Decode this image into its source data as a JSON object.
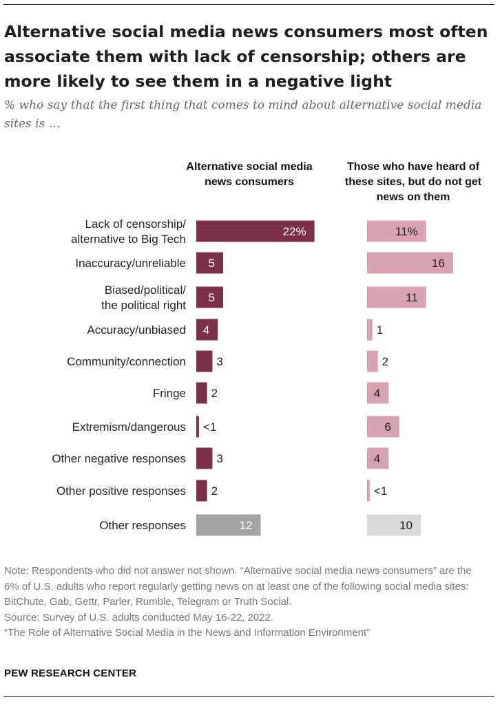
{
  "title": "Alternative social media news consumers most often associate them with lack of censorship; others are more likely to see them in a negative light",
  "subtitle": "% who say that the first thing that comes to mind about alternative social media sites is …",
  "columns": {
    "consumers": "Alternative social media news consumers",
    "heard": "Those who have heard of these sites, but do not get news on them"
  },
  "colors": {
    "consumers": "#7b2f48",
    "heard": "#d9a2b0",
    "consumers_other": "#a3a3a3",
    "heard_other": "#d9d9d9"
  },
  "chart_data": {
    "type": "bar",
    "orientation": "horizontal",
    "categories": [
      "Lack of censorship/ alternative to Big Tech",
      "Inaccuracy/unreliable",
      "Biased/political/ the political right",
      "Accuracy/unbiased",
      "Community/connection",
      "Fringe",
      "Extremism/dangerous",
      "Other negative responses",
      "Other positive responses",
      "Other responses"
    ],
    "series": [
      {
        "name": "Alternative social media news consumers",
        "values": [
          22,
          5,
          5,
          4,
          3,
          2,
          0.5,
          3,
          2,
          12
        ],
        "labels": [
          "22%",
          "5",
          "5",
          "4",
          "3",
          "2",
          "<1",
          "3",
          "2",
          "12"
        ]
      },
      {
        "name": "Those who have heard of these sites, but do not get news on them",
        "values": [
          11,
          16,
          11,
          1,
          2,
          4,
          6,
          4,
          0.5,
          10
        ],
        "labels": [
          "11%",
          "16",
          "11",
          "1",
          "2",
          "4",
          "6",
          "4",
          "<1",
          "10"
        ]
      }
    ],
    "unit": "%"
  },
  "notes": [
    "Note: Respondents who did not answer not shown. “Alternative social media news consumers” are the 6% of U.S. adults who report regularly getting news on at least one of the following social media sites: BitChute, Gab, Gettr, Parler, Rumble, Telegram or Truth Social.",
    "Source: Survey of U.S. adults conducted May 16-22, 2022.",
    "“The Role of Alternative Social Media in the News and Information Environment”"
  ],
  "brand": "PEW RESEARCH CENTER"
}
